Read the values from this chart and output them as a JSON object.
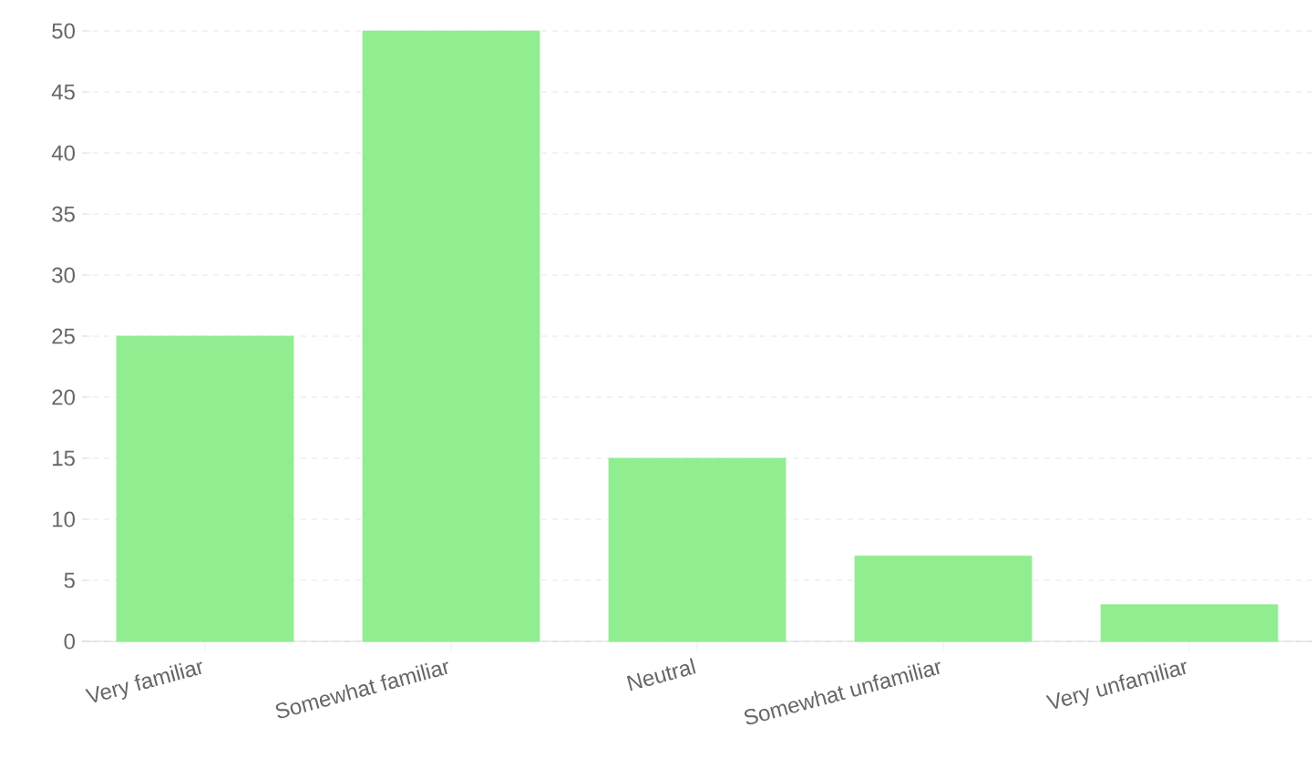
{
  "chart_data": {
    "type": "bar",
    "categories": [
      "Very familiar",
      "Somewhat familiar",
      "Neutral",
      "Somewhat unfamiliar",
      "Very unfamiliar"
    ],
    "values": [
      25,
      50,
      15,
      7,
      3
    ],
    "color": "#90ee90",
    "ylim": [
      0,
      50
    ],
    "yticks": [
      0,
      5,
      10,
      15,
      20,
      25,
      30,
      35,
      40,
      45,
      50
    ],
    "grid": "y"
  }
}
